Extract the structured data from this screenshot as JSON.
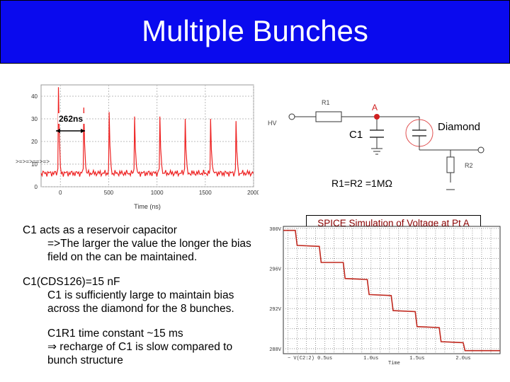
{
  "title": "Multiple Bunches",
  "pulse_plot": {
    "annotation": "262ns",
    "x_axis_title": "Time (ns)",
    "x_ticks": [
      "0",
      "500",
      "1000",
      "1500",
      "2000"
    ],
    "y_ticks": [
      "40",
      "30",
      "20",
      "10",
      "0"
    ],
    "left_note": ">=>=>==>=>"
  },
  "circuit": {
    "r1_label": "R1",
    "node_label": "A",
    "hv_label": "HV",
    "c1_label": "C1",
    "diamond_label": "Diamond",
    "r2_label": "R2",
    "equation": "R1=R2 =1MΩ"
  },
  "spice": {
    "label": "SPICE Simulation of  Voltage at Pt A",
    "y_ticks": [
      "300V",
      "296V",
      "292V",
      "288V"
    ],
    "x_ticks": [
      "0.5us",
      "1.0us",
      "1.5us",
      "2.0us"
    ],
    "legend": "− V(C2:2)",
    "x_title": "Time"
  },
  "text_block": {
    "line1": "C1 acts as a reservoir capacitor",
    "line2": "=>The  larger the value the longer the bias",
    "line3": "field on the can be maintained.",
    "line4": "C1(CDS126)=15 nF",
    "line5": "C1 is sufficiently large to maintain bias",
    "line6": "across the diamond for the 8 bunches.",
    "line7": "C1R1 time constant ~15 ms",
    "line8_symbol": "⇒",
    "line8": " recharge of C1 is slow compared to",
    "line9": "bunch structure"
  },
  "chart_data": [
    {
      "type": "line",
      "title": "",
      "xlabel": "Time (ns)",
      "ylabel": "",
      "xlim": [
        -200,
        2000
      ],
      "ylim": [
        0,
        45
      ],
      "pulse_peaks": [
        {
          "x": -20,
          "y": 44
        },
        {
          "x": 242,
          "y": 35
        },
        {
          "x": 505,
          "y": 33
        },
        {
          "x": 768,
          "y": 31
        },
        {
          "x": 1030,
          "y": 31
        },
        {
          "x": 1292,
          "y": 30
        },
        {
          "x": 1555,
          "y": 30
        },
        {
          "x": 1818,
          "y": 29
        }
      ],
      "annotation": {
        "text": "262ns",
        "x_from": -20,
        "x_to": 242
      }
    },
    {
      "type": "line",
      "title": "SPICE Simulation of  Voltage at Pt A",
      "xlabel": "Time",
      "ylabel": "",
      "x_unit": "us",
      "xlim": [
        0.05,
        2.4
      ],
      "ylim": [
        287.5,
        300.2
      ],
      "series": [
        {
          "name": "V(C2:2)",
          "x": [
            0.05,
            0.18,
            0.2,
            0.44,
            0.46,
            0.7,
            0.72,
            0.96,
            0.98,
            1.22,
            1.24,
            1.48,
            1.5,
            1.74,
            1.76,
            2.0,
            2.02,
            2.4
          ],
          "y": [
            299.8,
            299.8,
            298.3,
            298.2,
            296.6,
            296.6,
            295.0,
            294.9,
            293.4,
            293.3,
            291.8,
            291.7,
            290.2,
            290.1,
            288.7,
            288.6,
            287.8,
            287.8
          ]
        }
      ]
    }
  ]
}
